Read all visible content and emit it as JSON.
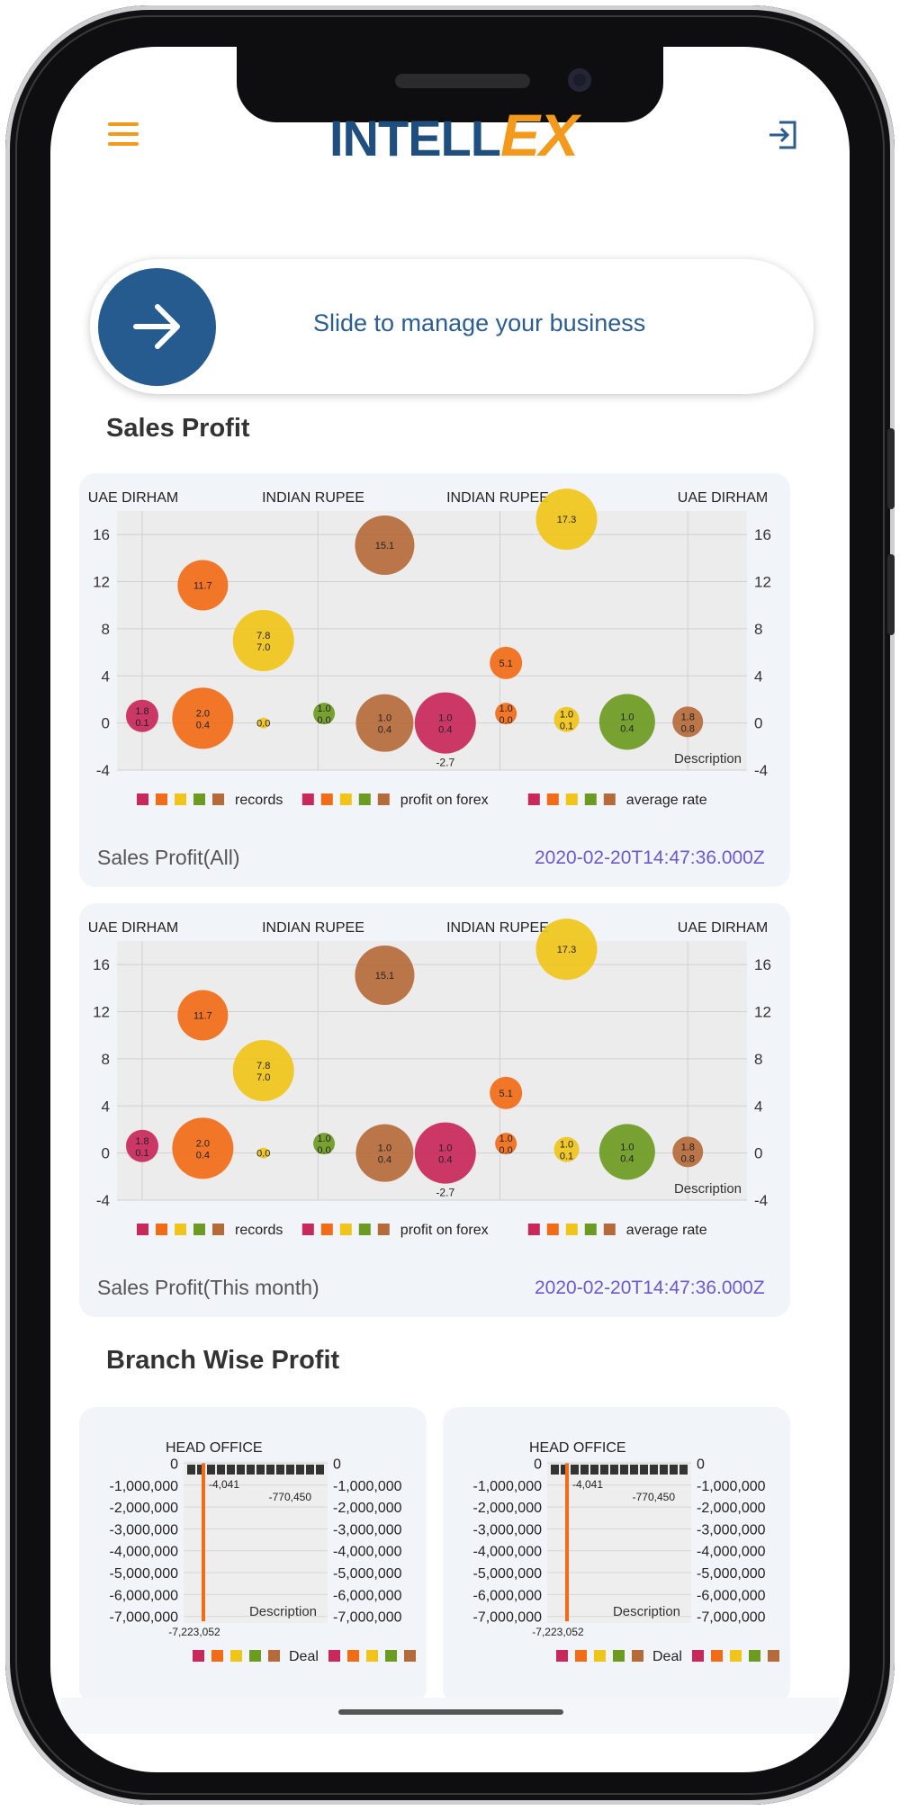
{
  "header": {
    "logo_left": "INTELL",
    "logo_right": "EX",
    "menu_icon": "hamburger-menu-icon",
    "logout_icon": "logout-icon"
  },
  "slider": {
    "text": "Slide to manage your business",
    "icon": "arrow-right-icon"
  },
  "sections": {
    "sales_profit": "Sales Profit",
    "branch_profit": "Branch Wise Profit"
  },
  "colors": {
    "brand_blue": "#255b8e",
    "brand_orange": "#f39a1d",
    "date_purple": "#6a5acd"
  },
  "cards": [
    {
      "title": "Sales Profit(All)",
      "timestamp": "2020-02-20T14:47:36.000Z"
    },
    {
      "title": "Sales Profit(This month)",
      "timestamp": "2020-02-20T14:47:36.000Z"
    }
  ],
  "chart_data": [
    {
      "type": "scatter",
      "title": "",
      "top_categories": [
        "UAE DIRHAM",
        "INDIAN RUPEE",
        "INDIAN RUPEE",
        "UAE DIRHAM"
      ],
      "yticks": [
        "-4",
        "0",
        "4",
        "8",
        "12",
        "16"
      ],
      "ylim": [
        -4,
        18
      ],
      "xlabel": "Description",
      "legend": [
        "records",
        "profit on forex",
        "average rate"
      ],
      "legend_colors": [
        "#c8285a",
        "#f26b17",
        "#f0c419",
        "#6d9b22",
        "#b56a3a"
      ],
      "bubbles": [
        {
          "x": 1,
          "y": 0.6,
          "r": 18,
          "color": "#c8285a",
          "labels": [
            "1.8",
            "0.1"
          ]
        },
        {
          "x": 2,
          "y": 11.7,
          "r": 28,
          "color": "#f26b17",
          "labels": [
            "11.7"
          ]
        },
        {
          "x": 2,
          "y": 0.4,
          "r": 34,
          "color": "#f26b17",
          "labels": [
            "2.0",
            "0.4"
          ]
        },
        {
          "x": 3,
          "y": 7.0,
          "r": 34,
          "color": "#f0c419",
          "labels": [
            "7.8",
            "7.0"
          ]
        },
        {
          "x": 3,
          "y": 0,
          "r": 6,
          "color": "#f0c419",
          "labels": [
            "0.0"
          ]
        },
        {
          "x": 4,
          "y": 0.8,
          "r": 12,
          "color": "#6d9b22",
          "labels": [
            "1.0",
            "0.0"
          ]
        },
        {
          "x": 5,
          "y": 15.1,
          "r": 33,
          "color": "#b56a3a",
          "labels": [
            "15.1"
          ]
        },
        {
          "x": 5,
          "y": 0,
          "r": 32,
          "color": "#b56a3a",
          "labels": [
            "1.0",
            "0.4"
          ]
        },
        {
          "x": 6,
          "y": 0,
          "r": 34,
          "color": "#c8285a",
          "labels": [
            "1.0",
            "0.4"
          ],
          "below": "-2.7"
        },
        {
          "x": 7,
          "y": 5.1,
          "r": 18,
          "color": "#f26b17",
          "labels": [
            "5.1"
          ]
        },
        {
          "x": 7,
          "y": 0.8,
          "r": 12,
          "color": "#f26b17",
          "labels": [
            "1.0",
            "0.0"
          ]
        },
        {
          "x": 8,
          "y": 17.3,
          "r": 34,
          "color": "#f0c419",
          "labels": [
            "17.3"
          ]
        },
        {
          "x": 8,
          "y": 0.3,
          "r": 14,
          "color": "#f0c419",
          "labels": [
            "1.0",
            "0.1"
          ]
        },
        {
          "x": 9,
          "y": 0.1,
          "r": 31,
          "color": "#6d9b22",
          "labels": [
            "1.0",
            "0.4"
          ]
        },
        {
          "x": 10,
          "y": 0.1,
          "r": 17,
          "color": "#b56a3a",
          "labels": [
            "1.8",
            "0.8"
          ]
        }
      ]
    },
    {
      "type": "scatter",
      "title": "",
      "top_categories": [
        "UAE DIRHAM",
        "INDIAN RUPEE",
        "INDIAN RUPEE",
        "UAE DIRHAM"
      ],
      "yticks": [
        "-4",
        "0",
        "4",
        "8",
        "12",
        "16"
      ],
      "ylim": [
        -4,
        18
      ],
      "xlabel": "Description",
      "legend": [
        "records",
        "profit on forex",
        "average rate"
      ],
      "legend_colors": [
        "#c8285a",
        "#f26b17",
        "#f0c419",
        "#6d9b22",
        "#b56a3a"
      ],
      "bubbles": [
        {
          "x": 1,
          "y": 0.6,
          "r": 18,
          "color": "#c8285a",
          "labels": [
            "1.8",
            "0.1"
          ]
        },
        {
          "x": 2,
          "y": 11.7,
          "r": 28,
          "color": "#f26b17",
          "labels": [
            "11.7"
          ]
        },
        {
          "x": 2,
          "y": 0.4,
          "r": 34,
          "color": "#f26b17",
          "labels": [
            "2.0",
            "0.4"
          ]
        },
        {
          "x": 3,
          "y": 7.0,
          "r": 34,
          "color": "#f0c419",
          "labels": [
            "7.8",
            "7.0"
          ]
        },
        {
          "x": 3,
          "y": 0,
          "r": 6,
          "color": "#f0c419",
          "labels": [
            "0.0"
          ]
        },
        {
          "x": 4,
          "y": 0.8,
          "r": 12,
          "color": "#6d9b22",
          "labels": [
            "1.0",
            "0.0"
          ]
        },
        {
          "x": 5,
          "y": 15.1,
          "r": 33,
          "color": "#b56a3a",
          "labels": [
            "15.1"
          ]
        },
        {
          "x": 5,
          "y": 0,
          "r": 32,
          "color": "#b56a3a",
          "labels": [
            "1.0",
            "0.4"
          ]
        },
        {
          "x": 6,
          "y": 0,
          "r": 34,
          "color": "#c8285a",
          "labels": [
            "1.0",
            "0.4"
          ],
          "below": "-2.7"
        },
        {
          "x": 7,
          "y": 5.1,
          "r": 18,
          "color": "#f26b17",
          "labels": [
            "5.1"
          ]
        },
        {
          "x": 7,
          "y": 0.8,
          "r": 12,
          "color": "#f26b17",
          "labels": [
            "1.0",
            "0.0"
          ]
        },
        {
          "x": 8,
          "y": 17.3,
          "r": 34,
          "color": "#f0c419",
          "labels": [
            "17.3"
          ]
        },
        {
          "x": 8,
          "y": 0.3,
          "r": 14,
          "color": "#f0c419",
          "labels": [
            "1.0",
            "0.1"
          ]
        },
        {
          "x": 9,
          "y": 0.1,
          "r": 31,
          "color": "#6d9b22",
          "labels": [
            "1.0",
            "0.4"
          ]
        },
        {
          "x": 10,
          "y": 0.1,
          "r": 17,
          "color": "#b56a3a",
          "labels": [
            "1.8",
            "0.8"
          ]
        }
      ]
    },
    {
      "type": "bar",
      "title": "",
      "top_category": "HEAD OFFICE",
      "yticks": [
        "0",
        "-1,000,000",
        "-2,000,000",
        "-3,000,000",
        "-4,000,000",
        "-5,000,000",
        "-6,000,000",
        "-7,000,000"
      ],
      "ylim": [
        -7300000,
        100000
      ],
      "xlabel": "Description",
      "bar_value": -7223052,
      "bar_label": "-7,223,052",
      "annotations": [
        "-4,041",
        "-770,450"
      ],
      "legend": [
        "Deal"
      ],
      "legend_colors": [
        "#c8285a",
        "#f26b17",
        "#f0c419",
        "#6d9b22",
        "#b56a3a"
      ]
    },
    {
      "type": "bar",
      "title": "",
      "top_category": "HEAD OFFICE",
      "yticks": [
        "0",
        "-1,000,000",
        "-2,000,000",
        "-3,000,000",
        "-4,000,000",
        "-5,000,000",
        "-6,000,000",
        "-7,000,000"
      ],
      "ylim": [
        -7300000,
        100000
      ],
      "xlabel": "Description",
      "bar_value": -7223052,
      "bar_label": "-7,223,052",
      "annotations": [
        "-4,041",
        "-770,450"
      ],
      "legend": [
        "Deal"
      ],
      "legend_colors": [
        "#c8285a",
        "#f26b17",
        "#f0c419",
        "#6d9b22",
        "#b56a3a"
      ]
    }
  ]
}
